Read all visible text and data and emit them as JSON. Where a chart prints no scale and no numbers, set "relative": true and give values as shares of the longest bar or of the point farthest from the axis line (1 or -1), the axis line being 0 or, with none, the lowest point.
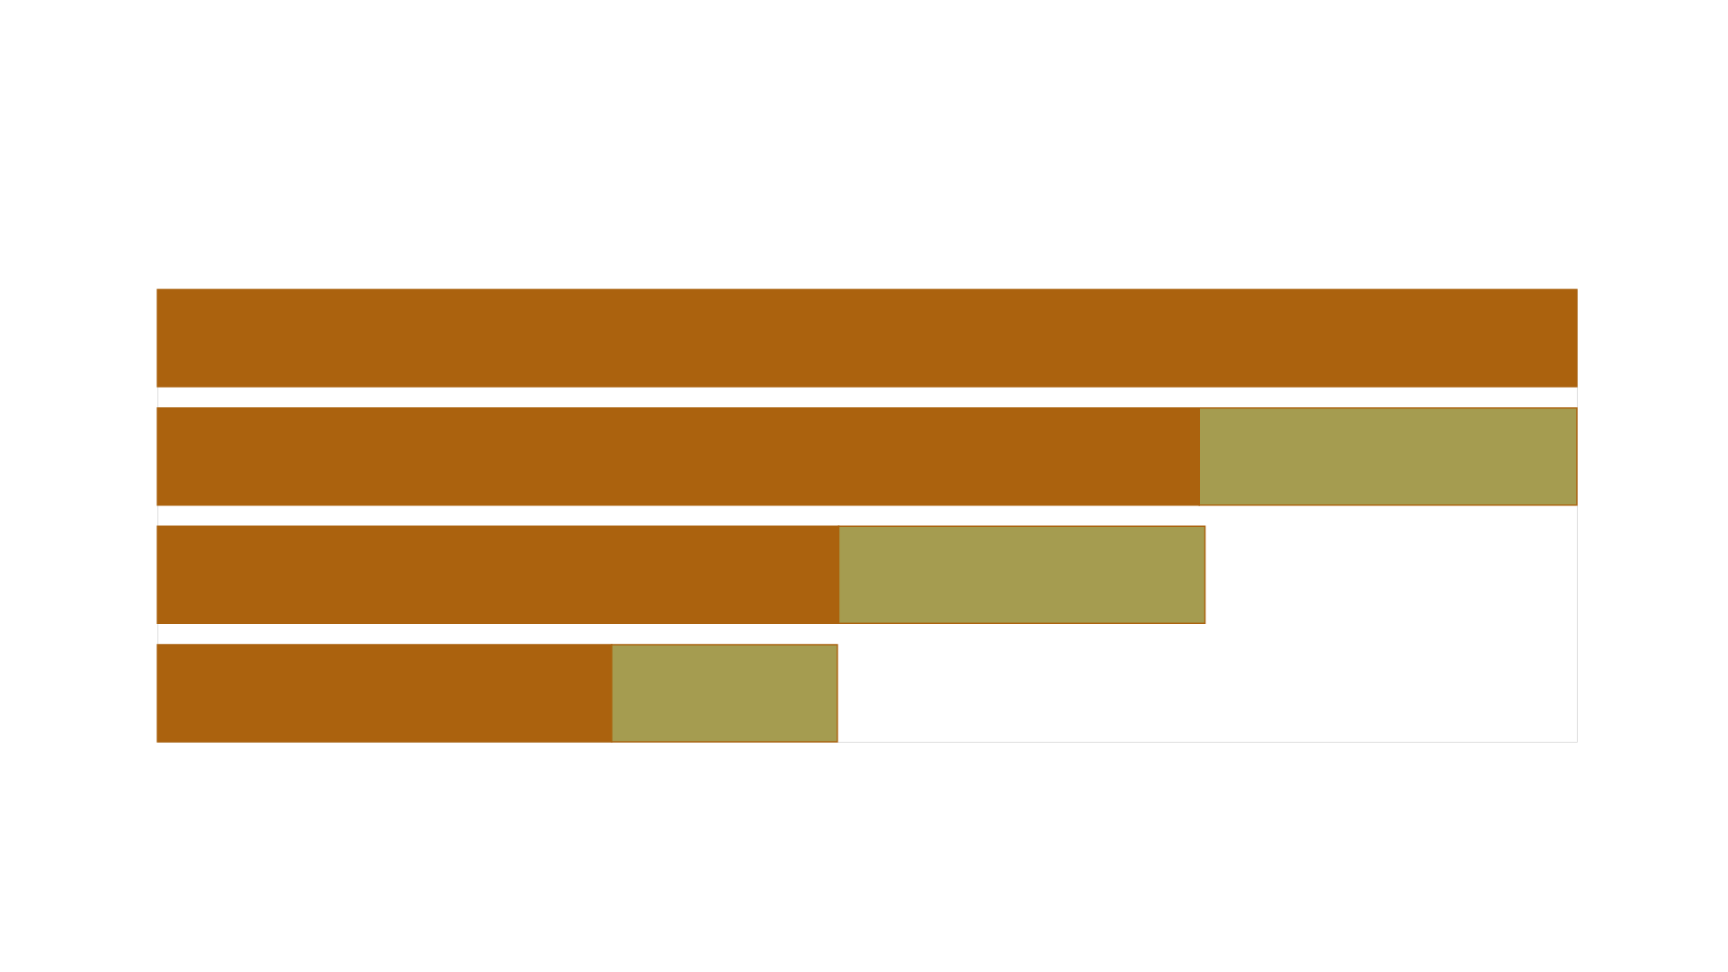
{
  "chart_data": {
    "type": "bar",
    "orientation": "horizontal",
    "stacked": true,
    "relative": true,
    "categories": [
      null,
      null,
      null,
      null
    ],
    "series": [
      {
        "color": "#ab620e",
        "values": [
          1,
          0.734,
          0.48,
          0.32
        ]
      },
      {
        "color": "#a59c50",
        "values": [
          null,
          0.266,
          0.258,
          0.159
        ]
      }
    ]
  }
}
